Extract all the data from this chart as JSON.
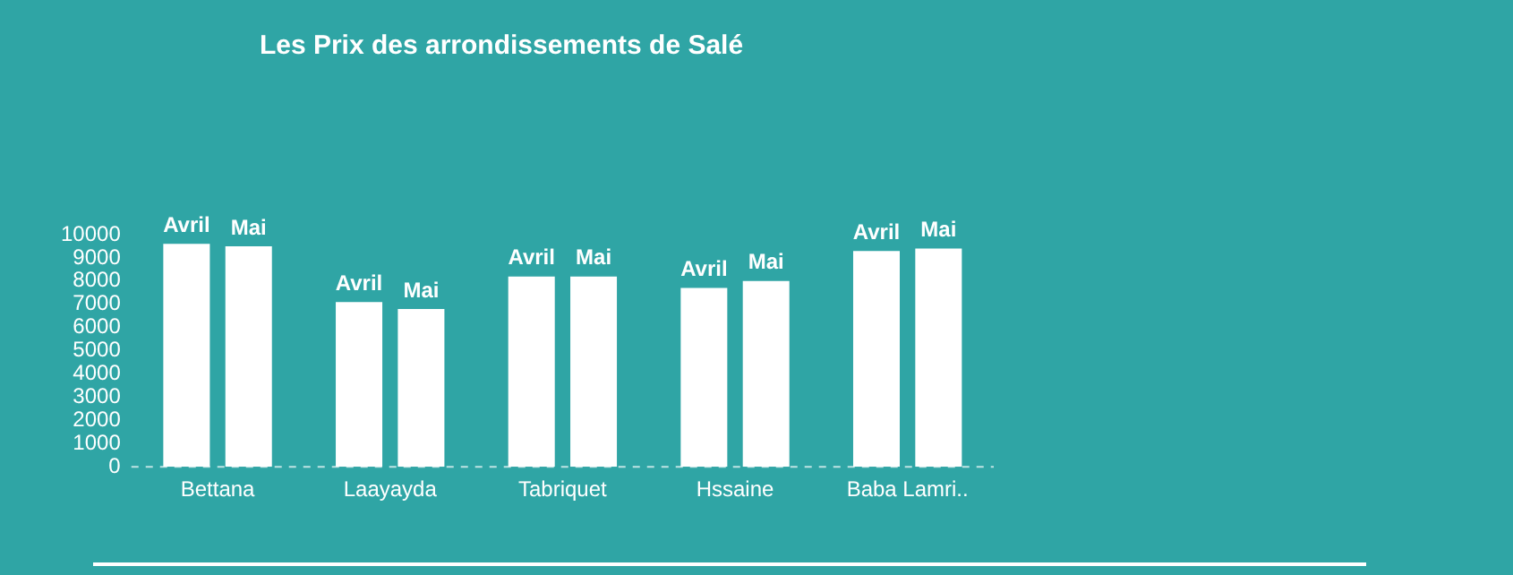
{
  "chart_data": {
    "type": "bar",
    "title": "Les Prix des arrondissements de Salé",
    "categories": [
      "Bettana",
      "Laayayda",
      "Tabriquet",
      "Hssaine",
      "Baba Lamri.."
    ],
    "series": [
      {
        "name": "Avril",
        "color": "#ffffff",
        "values": [
          9600,
          7100,
          8200,
          7700,
          9300
        ]
      },
      {
        "name": "Mai",
        "color": "#ffffff",
        "values": [
          9500,
          6800,
          8200,
          8000,
          9400
        ]
      }
    ],
    "ylim": [
      0,
      10000
    ],
    "yticks": [
      0,
      1000,
      2000,
      3000,
      4000,
      5000,
      6000,
      7000,
      8000,
      9000,
      10000
    ],
    "grid": false,
    "legend": false
  }
}
